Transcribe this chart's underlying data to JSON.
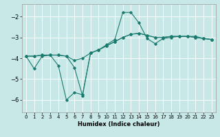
{
  "xlabel": "Humidex (Indice chaleur)",
  "bg_color": "#c8e8e8",
  "grid_color": "#ffffff",
  "line_color": "#1a7a6e",
  "x_ticks": [
    0,
    1,
    2,
    3,
    4,
    5,
    6,
    7,
    8,
    9,
    10,
    11,
    12,
    13,
    14,
    15,
    16,
    17,
    18,
    19,
    20,
    21,
    22,
    23
  ],
  "y_ticks": [
    -6,
    -5,
    -4,
    -3,
    -2
  ],
  "xlim": [
    -0.5,
    23.5
  ],
  "ylim": [
    -6.6,
    -1.4
  ],
  "line1_x": [
    0,
    1,
    2,
    3,
    4,
    5,
    6,
    7,
    8,
    9,
    10,
    11,
    12,
    13,
    14,
    15,
    16,
    17,
    18,
    19,
    20,
    21,
    22,
    23
  ],
  "line1_y": [
    -3.9,
    -4.5,
    -3.9,
    -3.85,
    -4.35,
    -6.0,
    -5.65,
    -5.75,
    -3.75,
    -3.6,
    -3.35,
    -3.1,
    -1.8,
    -1.8,
    -2.3,
    -3.05,
    -3.3,
    -3.05,
    -3.0,
    -2.95,
    -2.95,
    -2.95,
    -3.05,
    -3.1
  ],
  "line2_x": [
    0,
    1,
    2,
    3,
    4,
    5,
    6,
    7,
    8,
    9,
    10,
    11,
    12,
    13,
    14,
    15,
    16,
    17,
    18,
    19,
    20,
    21,
    22,
    23
  ],
  "line2_y": [
    -3.9,
    -3.9,
    -3.85,
    -3.85,
    -3.85,
    -3.9,
    -4.1,
    -4.0,
    -3.75,
    -3.6,
    -3.4,
    -3.2,
    -3.0,
    -2.85,
    -2.8,
    -2.9,
    -3.0,
    -3.0,
    -2.95,
    -2.95,
    -2.95,
    -3.0,
    -3.05,
    -3.1
  ],
  "line3_x": [
    0,
    1,
    2,
    3,
    4,
    5,
    6,
    7,
    8,
    9,
    10,
    11,
    12,
    13,
    14,
    15,
    16,
    17,
    18,
    19,
    20,
    21,
    22,
    23
  ],
  "line3_y": [
    -3.9,
    -3.9,
    -3.85,
    -3.85,
    -3.85,
    -3.9,
    -4.45,
    -5.8,
    -3.75,
    -3.6,
    -3.4,
    -3.2,
    -3.0,
    -2.85,
    -2.8,
    -2.9,
    -3.0,
    -3.0,
    -2.95,
    -2.95,
    -2.95,
    -3.0,
    -3.05,
    -3.1
  ]
}
